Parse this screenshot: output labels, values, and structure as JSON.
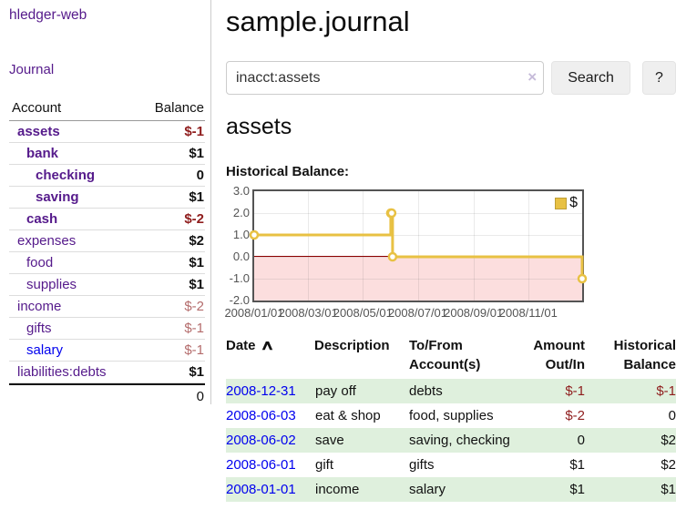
{
  "brand": "hledger-web",
  "colors": {
    "link_visited_purple": "#551a8b",
    "link_blue": "#0000ee",
    "negative_strong_red": "#8f1d1d",
    "negative_soft_red": "#b46c6c",
    "row_green": "#dff0dd",
    "chart_line_gold": "#e8c143"
  },
  "sidebar": {
    "journal_link": "Journal",
    "accounts_header": {
      "account": "Account",
      "balance": "Balance"
    },
    "accounts": [
      {
        "name": "assets",
        "indent": 1,
        "bold": true,
        "balance": "$-1",
        "balance_style": "neg-strong"
      },
      {
        "name": "bank",
        "indent": 2,
        "bold": true,
        "balance": "$1",
        "balance_style": "pos"
      },
      {
        "name": "checking",
        "indent": 3,
        "bold": true,
        "balance": "0",
        "balance_style": "pos"
      },
      {
        "name": "saving",
        "indent": 3,
        "bold": true,
        "balance": "$1",
        "balance_style": "pos"
      },
      {
        "name": "cash",
        "indent": 2,
        "bold": true,
        "balance": "$-2",
        "balance_style": "neg-strong"
      },
      {
        "name": "expenses",
        "indent": 1,
        "bold": false,
        "balance": "$2",
        "balance_style": "pos"
      },
      {
        "name": "food",
        "indent": 2,
        "bold": false,
        "balance": "$1",
        "balance_style": "pos"
      },
      {
        "name": "supplies",
        "indent": 2,
        "bold": false,
        "balance": "$1",
        "balance_style": "pos"
      },
      {
        "name": "income",
        "indent": 1,
        "bold": false,
        "balance": "$-2",
        "balance_style": "neg-soft"
      },
      {
        "name": "gifts",
        "indent": 2,
        "bold": false,
        "balance": "$-1",
        "balance_style": "neg-soft"
      },
      {
        "name": "salary",
        "indent": 2,
        "bold": false,
        "balance": "$-1",
        "balance_style": "neg-soft",
        "link_color": "blue"
      },
      {
        "name": "liabilities:debts",
        "indent": 1,
        "bold": false,
        "balance": "$1",
        "balance_style": "pos"
      }
    ],
    "total": "0"
  },
  "header": {
    "title": "sample.journal"
  },
  "search": {
    "value": "inacct:assets",
    "clear_icon": "×",
    "button_label": "Search",
    "help_label": "?"
  },
  "account_page": {
    "title": "assets",
    "chart_title": "Historical Balance:"
  },
  "chart_data": {
    "type": "line",
    "style": "step",
    "title": "Historical Balance:",
    "legend_label": "$",
    "legend_position": "top-right",
    "series": [
      {
        "name": "$",
        "color": "#e8c143",
        "points": [
          [
            "2008-01-01",
            1
          ],
          [
            "2008-06-01",
            2
          ],
          [
            "2008-06-02",
            2
          ],
          [
            "2008-06-03",
            0
          ],
          [
            "2008-12-31",
            -1
          ]
        ]
      }
    ],
    "x_start": "2008-01-01",
    "x_span_days": 365,
    "x_ticks": [
      "2008/01/01",
      "2008/03/01",
      "2008/05/01",
      "2008/07/01",
      "2008/09/01",
      "2008/11/01"
    ],
    "y_ticks": [
      "3.0",
      "2.0",
      "1.0",
      "0.0",
      "-1.0",
      "-2.0"
    ],
    "ylim": [
      -2,
      3
    ],
    "grid": true,
    "negative_region_color": "#fcdede",
    "zero_line_color": "#8b0000"
  },
  "register": {
    "columns": [
      {
        "label": "Date",
        "sort": true,
        "align": "left"
      },
      {
        "label": "Description",
        "align": "left"
      },
      {
        "label": "To/From Account(s)",
        "align": "left"
      },
      {
        "label": "Amount Out/In",
        "align": "right"
      },
      {
        "label": "Historical Balance",
        "align": "right"
      }
    ],
    "sort_icon": "∧",
    "rows": [
      {
        "date": "2008-12-31",
        "description": "pay off",
        "accounts": "debts",
        "amount": "$-1",
        "amount_neg": true,
        "balance": "$-1",
        "balance_neg": true
      },
      {
        "date": "2008-06-03",
        "description": "eat & shop",
        "accounts": "food, supplies",
        "amount": "$-2",
        "amount_neg": true,
        "balance": "0",
        "balance_neg": false
      },
      {
        "date": "2008-06-02",
        "description": "save",
        "accounts": "saving, checking",
        "amount": "0",
        "amount_neg": false,
        "balance": "$2",
        "balance_neg": false
      },
      {
        "date": "2008-06-01",
        "description": "gift",
        "accounts": "gifts",
        "amount": "$1",
        "amount_neg": false,
        "balance": "$2",
        "balance_neg": false
      },
      {
        "date": "2008-01-01",
        "description": "income",
        "accounts": "salary",
        "amount": "$1",
        "amount_neg": false,
        "balance": "$1",
        "balance_neg": false
      }
    ]
  }
}
